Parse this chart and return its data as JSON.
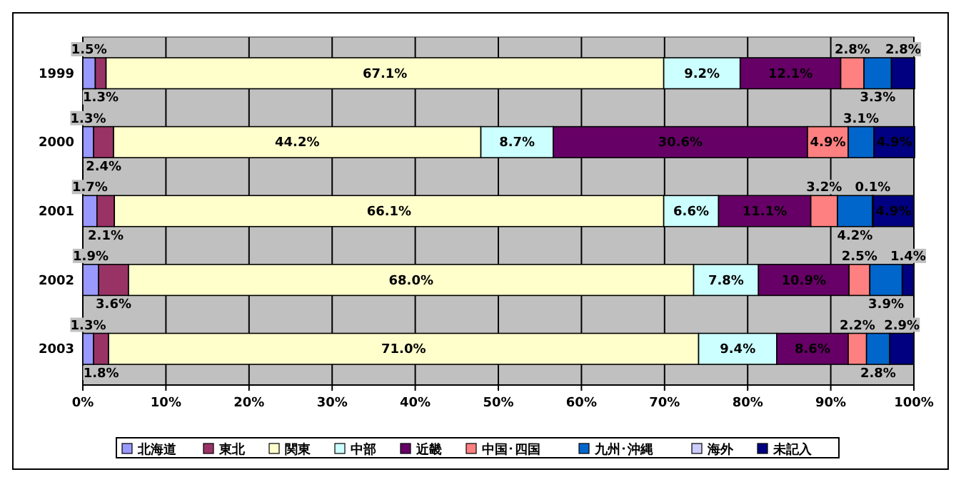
{
  "chart_data": {
    "type": "bar",
    "orientation": "horizontal",
    "stacked": true,
    "categories": [
      "1999",
      "2000",
      "2001",
      "2002",
      "2003"
    ],
    "xlim": [
      0,
      100
    ],
    "xticks": [
      {
        "value": 0,
        "label": "0%"
      },
      {
        "value": 10,
        "label": "10%"
      },
      {
        "value": 20,
        "label": "20%"
      },
      {
        "value": 30,
        "label": "30%"
      },
      {
        "value": 40,
        "label": "40%"
      },
      {
        "value": 50,
        "label": "50%"
      },
      {
        "value": 60,
        "label": "60%"
      },
      {
        "value": 70,
        "label": "70%"
      },
      {
        "value": 80,
        "label": "80%"
      },
      {
        "value": 90,
        "label": "90%"
      },
      {
        "value": 100,
        "label": "100%"
      }
    ],
    "grid": "x",
    "legend": "bottom",
    "series": [
      {
        "name": "北海道",
        "color": "#9999ff",
        "values": [
          1.5,
          1.3,
          1.7,
          1.9,
          1.3
        ],
        "value_labels": [
          "1.5%",
          "1.3%",
          "1.7%",
          "1.9%",
          "1.3%"
        ]
      },
      {
        "name": "東北",
        "color": "#993366",
        "values": [
          1.3,
          2.4,
          2.1,
          3.6,
          1.8
        ],
        "value_labels": [
          "1.3%",
          "2.4%",
          "2.1%",
          "3.6%",
          "1.8%"
        ]
      },
      {
        "name": "関東",
        "color": "#ffffcc",
        "values": [
          67.1,
          44.2,
          66.1,
          68.0,
          71.0
        ],
        "value_labels": [
          "67.1%",
          "44.2%",
          "66.1%",
          "68.0%",
          "71.0%"
        ]
      },
      {
        "name": "中部",
        "color": "#ccffff",
        "values": [
          9.2,
          8.7,
          6.6,
          7.8,
          9.4
        ],
        "value_labels": [
          "9.2%",
          "8.7%",
          "6.6%",
          "7.8%",
          "9.4%"
        ]
      },
      {
        "name": "近畿",
        "color": "#660066",
        "values": [
          12.1,
          30.6,
          11.1,
          10.9,
          8.6
        ],
        "value_labels": [
          "12.1%",
          "30.6%",
          "11.1%",
          "10.9%",
          "8.6%"
        ]
      },
      {
        "name": "中国･四国",
        "color": "#ff8080",
        "values": [
          2.8,
          4.9,
          3.2,
          2.5,
          2.2
        ],
        "value_labels": [
          "2.8%",
          "4.9%",
          "3.2%",
          "2.5%",
          "2.2%"
        ]
      },
      {
        "name": "九州･沖縄",
        "color": "#0066cc",
        "values": [
          3.3,
          3.1,
          4.2,
          3.9,
          2.8
        ],
        "value_labels": [
          "3.3%",
          "3.1%",
          "4.2%",
          "3.9%",
          "2.8%"
        ]
      },
      {
        "name": "海外",
        "color": "#ccccff",
        "values": [
          null,
          null,
          0.1,
          null,
          null
        ],
        "value_labels": [
          null,
          null,
          "0.1%",
          null,
          null
        ]
      },
      {
        "name": "未記入",
        "color": "#000080",
        "values": [
          2.8,
          4.9,
          4.9,
          1.4,
          2.9
        ],
        "value_labels": [
          "2.8%",
          "4.9%",
          "4.9%",
          "1.4%",
          "2.9%"
        ]
      }
    ]
  }
}
